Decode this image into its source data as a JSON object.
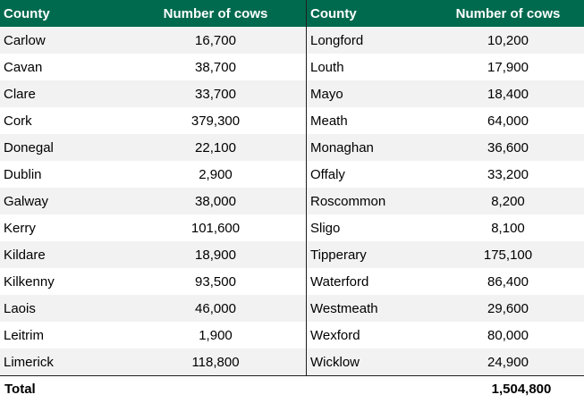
{
  "headers": {
    "county": "County",
    "cows": "Number of cows"
  },
  "left_rows": [
    {
      "county": "Carlow",
      "cows": "16,700"
    },
    {
      "county": "Cavan",
      "cows": "38,700"
    },
    {
      "county": "Clare",
      "cows": "33,700"
    },
    {
      "county": "Cork",
      "cows": "379,300"
    },
    {
      "county": "Donegal",
      "cows": "22,100"
    },
    {
      "county": "Dublin",
      "cows": "2,900"
    },
    {
      "county": "Galway",
      "cows": "38,000"
    },
    {
      "county": "Kerry",
      "cows": "101,600"
    },
    {
      "county": "Kildare",
      "cows": "18,900"
    },
    {
      "county": "Kilkenny",
      "cows": "93,500"
    },
    {
      "county": "Laois",
      "cows": "46,000"
    },
    {
      "county": "Leitrim",
      "cows": "1,900"
    },
    {
      "county": "Limerick",
      "cows": "118,800"
    }
  ],
  "right_rows": [
    {
      "county": "Longford",
      "cows": "10,200"
    },
    {
      "county": "Louth",
      "cows": "17,900"
    },
    {
      "county": "Mayo",
      "cows": "18,400"
    },
    {
      "county": "Meath",
      "cows": "64,000"
    },
    {
      "county": "Monaghan",
      "cows": "36,600"
    },
    {
      "county": "Offaly",
      "cows": "33,200"
    },
    {
      "county": "Roscommon",
      "cows": "8,200"
    },
    {
      "county": "Sligo",
      "cows": "8,100"
    },
    {
      "county": "Tipperary",
      "cows": "175,100"
    },
    {
      "county": "Waterford",
      "cows": "86,400"
    },
    {
      "county": "Westmeath",
      "cows": "29,600"
    },
    {
      "county": "Wexford",
      "cows": "80,000"
    },
    {
      "county": "Wicklow",
      "cows": "24,900"
    }
  ],
  "total": {
    "label": "Total",
    "value": "1,504,800"
  },
  "colors": {
    "header_bg": "#006a4e",
    "header_text": "#ffffff",
    "stripe": "#f2f2f2"
  }
}
